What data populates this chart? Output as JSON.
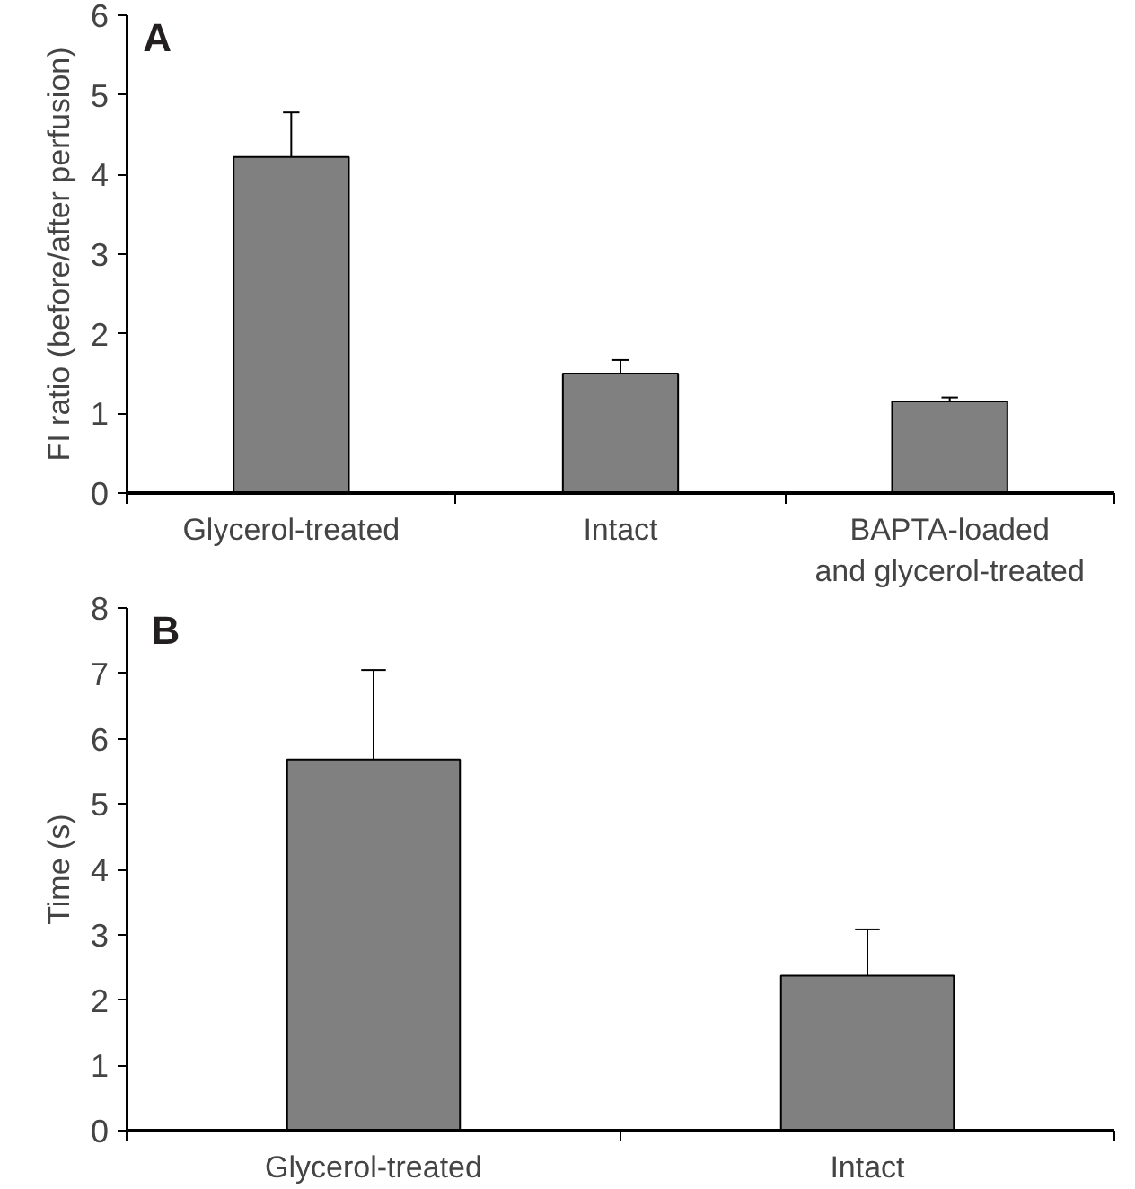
{
  "chart_data": [
    {
      "type": "bar",
      "title": "A",
      "ylabel": "FI ratio (before/after perfusion)",
      "categories": [
        "Glycerol-treated",
        "Intact",
        "BAPTA-loaded\nand glycerol-treated"
      ],
      "values": [
        4.22,
        1.5,
        1.15
      ],
      "errors": [
        [
          4.22,
          4.78
        ],
        [
          1.5,
          1.67
        ],
        [
          1.15,
          1.2
        ]
      ],
      "color": "#808080",
      "ylim": [
        0,
        6
      ],
      "yticks": [
        0,
        1,
        2,
        3,
        4,
        5,
        6
      ],
      "grid": false
    },
    {
      "type": "bar",
      "title": "B",
      "ylabel": "Time (s)",
      "categories": [
        "Glycerol-treated",
        "Intact"
      ],
      "values": [
        5.68,
        2.37
      ],
      "errors": [
        [
          5.68,
          7.05
        ],
        [
          2.37,
          3.08
        ]
      ],
      "color": "#808080",
      "ylim": [
        0,
        8
      ],
      "yticks": [
        0,
        1,
        2,
        3,
        4,
        5,
        6,
        7,
        8
      ],
      "grid": false
    }
  ]
}
